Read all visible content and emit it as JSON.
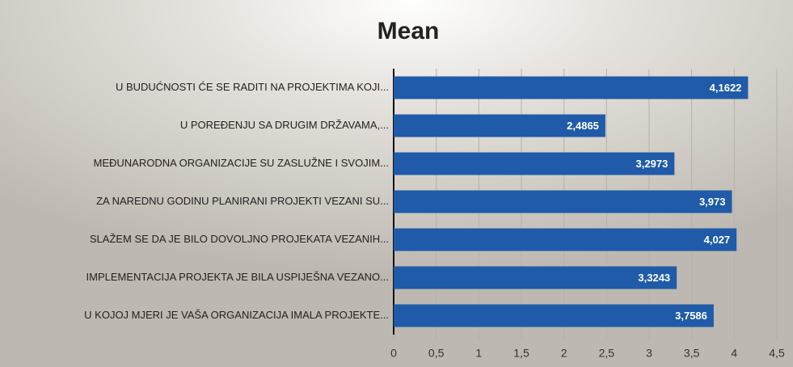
{
  "chart_data": {
    "type": "bar",
    "orientation": "horizontal",
    "title": "Mean",
    "categories": [
      "U BUDUĆNOSTI ĆE SE RADITI NA PROJEKTIMA KOJI...",
      "U POREĐENJU SA DRUGIM DRŽAVAMA,...",
      "MEĐUNARODNA ORGANIZACIJE SU ZASLUŽNE I SVOJIM...",
      "ZA NAREDNU GODINU PLANIRANI PROJEKTI VEZANI SU...",
      "SLAŽEM SE DA JE BILO DOVOLJNO PROJEKATA VEZANIH...",
      "IMPLEMENTACIJA PROJEKTA JE BILA USPIJEŠNA VEZANO...",
      "U KOJOJ MJERI JE VAŠA ORGANIZACIJA IMALA PROJEKTE..."
    ],
    "values": [
      4.1622,
      2.4865,
      3.2973,
      3.973,
      4.027,
      3.3243,
      3.7586
    ],
    "value_labels": [
      "4,1622",
      "2,4865",
      "3,2973",
      "3,973",
      "4,027",
      "3,3243",
      "3,7586"
    ],
    "color": "#1f5ba8",
    "xlim": [
      0,
      4.5
    ],
    "xticks": [
      0,
      {
        "value": 0.5,
        "label": "0,5"
      },
      1,
      {
        "value": 1.5,
        "label": "1,5"
      },
      2,
      {
        "value": 2.5,
        "label": "2,5"
      },
      3,
      {
        "value": 3.5,
        "label": "3,5"
      },
      4,
      {
        "value": 4.5,
        "label": "4,5"
      }
    ],
    "grid": true
  }
}
